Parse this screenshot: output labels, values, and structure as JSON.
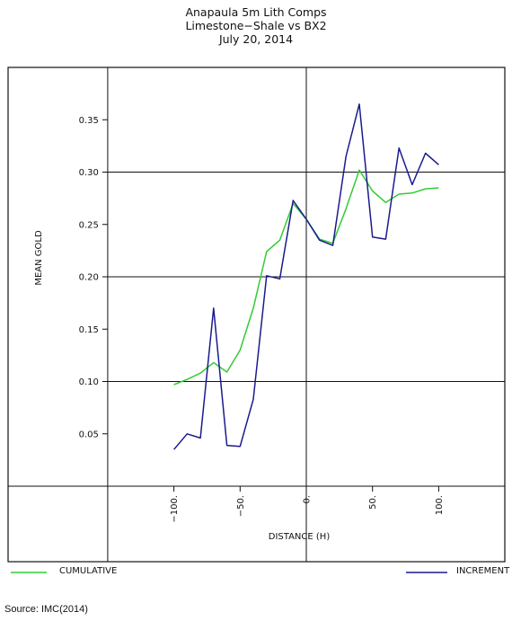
{
  "chart_data": {
    "type": "line",
    "title": "Anapaula 5m Lith Comps",
    "subtitle": "Limestone−Shale vs BX2",
    "date": "July 20, 2014",
    "xlabel": "DISTANCE (H)",
    "ylabel": "MEAN GOLD",
    "xlim": [
      -150,
      150
    ],
    "ylim": [
      -0.0,
      0.4
    ],
    "x_ticks": [
      "−100.",
      "−50.",
      "0.",
      "50.",
      "100."
    ],
    "x_tick_values": [
      -100,
      -50,
      0,
      50,
      100
    ],
    "y_ticks": [
      "0.05",
      "0.10",
      "0.15",
      "0.20",
      "0.25",
      "0.30",
      "0.35"
    ],
    "y_tick_values": [
      0.05,
      0.1,
      0.15,
      0.2,
      0.25,
      0.3,
      0.35
    ],
    "grid_y": [
      0.1,
      0.2,
      0.3
    ],
    "series": [
      {
        "name": "CUMULATIVE",
        "color": "#33cc33",
        "x": [
          -100,
          -90,
          -80,
          -70,
          -60,
          -50,
          -40,
          -30,
          -20,
          -10,
          0,
          10,
          20,
          30,
          40,
          50,
          60,
          70,
          80,
          90,
          100
        ],
        "values": [
          0.097,
          0.102,
          0.108,
          0.118,
          0.109,
          0.13,
          0.17,
          0.224,
          0.235,
          0.27,
          0.255,
          0.236,
          0.232,
          0.265,
          0.302,
          0.282,
          0.271,
          0.279,
          0.28,
          0.284,
          0.285
        ]
      },
      {
        "name": "INCREMENT",
        "color": "#1a1a8c",
        "x": [
          -100,
          -90,
          -80,
          -70,
          -60,
          -50,
          -40,
          -30,
          -20,
          -10,
          0,
          10,
          20,
          30,
          40,
          50,
          60,
          70,
          80,
          90,
          100
        ],
        "values": [
          0.035,
          0.05,
          0.046,
          0.17,
          0.039,
          0.038,
          0.083,
          0.201,
          0.198,
          0.273,
          0.255,
          0.235,
          0.23,
          0.315,
          0.365,
          0.238,
          0.236,
          0.323,
          0.288,
          0.318,
          0.307
        ]
      }
    ]
  },
  "footer": {
    "source": "Source: IMC(2014)"
  }
}
